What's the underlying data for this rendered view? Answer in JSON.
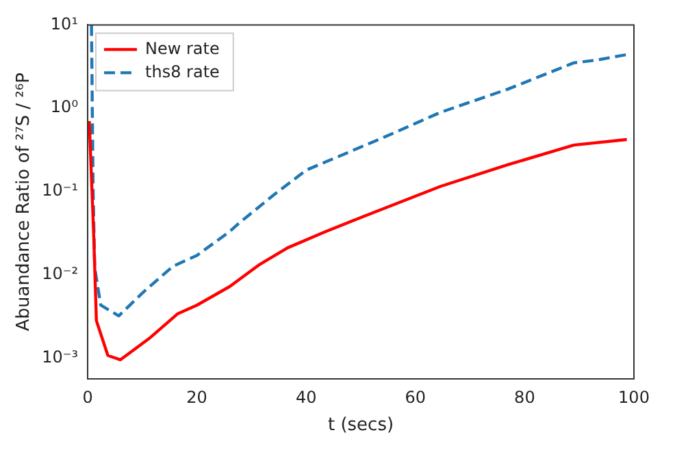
{
  "chart_data": {
    "type": "line",
    "xlabel": "t (secs)",
    "ylabel": "Abuandance Ratio of ²⁷S / ²⁶P",
    "log": "y",
    "grid": false,
    "legend": "top left",
    "marker": "none",
    "xlim": [
      0,
      100
    ],
    "xticks": [
      0,
      20,
      40,
      60,
      80,
      100
    ],
    "ylim": [
      0.00056,
      10
    ],
    "yticks": [
      {
        "value": 0.001,
        "label": "10⁻³"
      },
      {
        "value": 0.01,
        "label": "10⁻²"
      },
      {
        "value": 0.1,
        "label": "10⁻¹"
      },
      {
        "value": 1,
        "label": "10⁰"
      },
      {
        "value": 10,
        "label": "10¹"
      }
    ],
    "series": [
      {
        "name": "New rate",
        "color": "#ff0000",
        "line_style": "solid",
        "x": [
          0.3,
          0.8,
          1.1,
          1.6,
          3.7,
          6,
          11.2,
          16.5,
          20,
          26,
          31.3,
          36.6,
          43.6,
          50.5,
          64.6,
          77,
          89,
          98.7
        ],
        "values": [
          0.7,
          0.1,
          0.031,
          0.0028,
          0.00107,
          0.00095,
          0.0017,
          0.0034,
          0.0043,
          0.0072,
          0.013,
          0.021,
          0.033,
          0.05,
          0.115,
          0.21,
          0.36,
          0.42
        ]
      },
      {
        "name": "ths8 rate",
        "color": "#1f77b4",
        "line_style": "dashed",
        "x": [
          0.7,
          1.0,
          1.3,
          2.4,
          5.7,
          10,
          15.6,
          20,
          26,
          27.8,
          34,
          40,
          54,
          64.6,
          77,
          89,
          93.4,
          98.7
        ],
        "values": [
          10,
          0.1,
          0.012,
          0.0043,
          0.0032,
          0.006,
          0.0126,
          0.017,
          0.033,
          0.042,
          0.09,
          0.18,
          0.44,
          0.89,
          1.7,
          3.5,
          3.8,
          4.4
        ]
      }
    ]
  }
}
